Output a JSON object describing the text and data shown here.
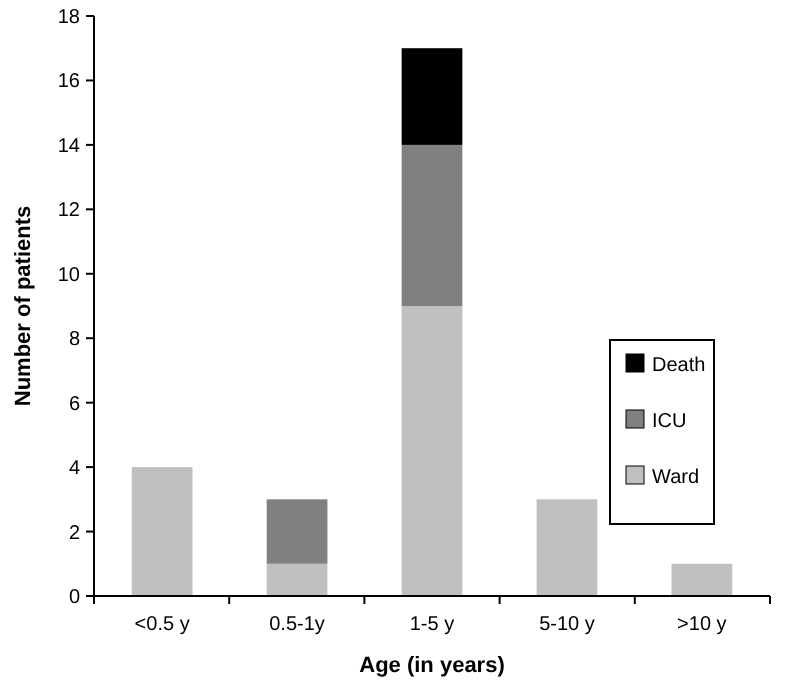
{
  "chart_data": {
    "type": "bar",
    "xlabel": "Age (in years)",
    "ylabel": "Number of patients",
    "categories": [
      "<0.5 y",
      "0.5-1y",
      "1-5 y",
      "5-10 y",
      ">10 y"
    ],
    "stacked": true,
    "series": [
      {
        "name": "Ward",
        "color": "#c0c0c0",
        "values": [
          4,
          1,
          9,
          3,
          1
        ]
      },
      {
        "name": "ICU",
        "color": "#808080",
        "values": [
          0,
          2,
          5,
          0,
          0
        ]
      },
      {
        "name": "Death",
        "color": "#000000",
        "values": [
          0,
          0,
          3,
          0,
          0
        ]
      }
    ],
    "ylim": [
      0,
      18
    ],
    "yticks": [
      0,
      2,
      4,
      6,
      8,
      10,
      12,
      14,
      16,
      18
    ],
    "grid": false,
    "legend": "right"
  }
}
